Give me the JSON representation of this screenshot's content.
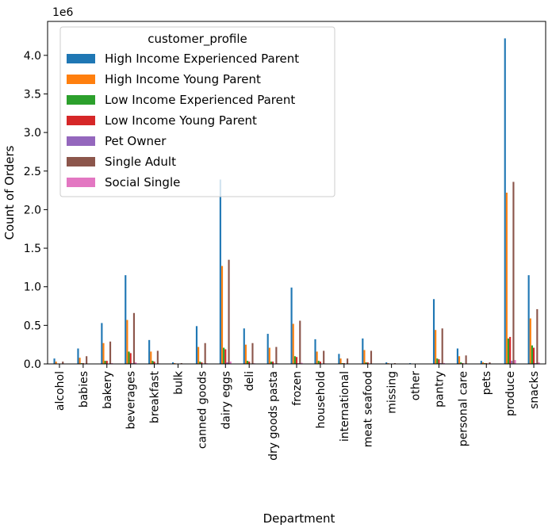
{
  "chart_data": {
    "type": "bar",
    "title": "",
    "xlabel": "Department",
    "ylabel": "Count of Orders",
    "y_multiplier_label": "1e6",
    "ylim": [
      0,
      4.44
    ],
    "yticks": [
      0.0,
      0.5,
      1.0,
      1.5,
      2.0,
      2.5,
      3.0,
      3.5,
      4.0
    ],
    "ytick_labels": [
      "0.0",
      "0.5",
      "1.0",
      "1.5",
      "2.0",
      "2.5",
      "3.0",
      "3.5",
      "4.0"
    ],
    "grid": false,
    "legend_title": "customer_profile",
    "legend_position": "top-left",
    "categories": [
      "alcohol",
      "babies",
      "bakery",
      "beverages",
      "breakfast",
      "bulk",
      "canned goods",
      "dairy eggs",
      "deli",
      "dry goods pasta",
      "frozen",
      "household",
      "international",
      "meat seafood",
      "missing",
      "other",
      "pantry",
      "personal care",
      "pets",
      "produce",
      "snacks"
    ],
    "series": [
      {
        "name": "High Income Experienced Parent",
        "color": "#1f77b4",
        "values": [
          0.07,
          0.2,
          0.53,
          1.15,
          0.31,
          0.02,
          0.49,
          2.39,
          0.46,
          0.39,
          0.99,
          0.32,
          0.13,
          0.33,
          0.02,
          0.01,
          0.84,
          0.2,
          0.04,
          4.22,
          1.15
        ]
      },
      {
        "name": "High Income Young Parent",
        "color": "#ff7f0e",
        "values": [
          0.03,
          0.08,
          0.27,
          0.57,
          0.16,
          0.01,
          0.22,
          1.27,
          0.25,
          0.21,
          0.52,
          0.16,
          0.07,
          0.18,
          0.01,
          0.005,
          0.44,
          0.1,
          0.02,
          2.22,
          0.59
        ]
      },
      {
        "name": "Low Income Experienced Parent",
        "color": "#2ca02c",
        "values": [
          0.005,
          0.01,
          0.04,
          0.16,
          0.04,
          0.002,
          0.03,
          0.21,
          0.04,
          0.03,
          0.1,
          0.04,
          0.01,
          0.02,
          0.002,
          0.001,
          0.07,
          0.02,
          0.01,
          0.33,
          0.24
        ]
      },
      {
        "name": "Low Income Young Parent",
        "color": "#d62728",
        "values": [
          0.005,
          0.01,
          0.04,
          0.14,
          0.03,
          0.002,
          0.02,
          0.19,
          0.03,
          0.03,
          0.09,
          0.03,
          0.01,
          0.02,
          0.002,
          0.001,
          0.06,
          0.01,
          0.01,
          0.35,
          0.21
        ]
      },
      {
        "name": "Pet Owner",
        "color": "#9467bd",
        "values": [
          0.001,
          0.002,
          0.005,
          0.01,
          0.004,
          0.0005,
          0.005,
          0.02,
          0.005,
          0.005,
          0.01,
          0.004,
          0.002,
          0.004,
          0.0005,
          0.0002,
          0.01,
          0.003,
          0.002,
          0.04,
          0.01
        ]
      },
      {
        "name": "Single Adult",
        "color": "#8c564b",
        "values": [
          0.03,
          0.1,
          0.29,
          0.66,
          0.17,
          0.01,
          0.27,
          1.35,
          0.27,
          0.22,
          0.56,
          0.17,
          0.07,
          0.17,
          0.01,
          0.005,
          0.46,
          0.11,
          0.02,
          2.36,
          0.71
        ]
      },
      {
        "name": "Social Single",
        "color": "#e377c2",
        "values": [
          0.002,
          0.003,
          0.01,
          0.02,
          0.006,
          0.001,
          0.008,
          0.03,
          0.008,
          0.007,
          0.015,
          0.006,
          0.003,
          0.005,
          0.001,
          0.0005,
          0.012,
          0.004,
          0.002,
          0.05,
          0.02
        ]
      }
    ]
  }
}
